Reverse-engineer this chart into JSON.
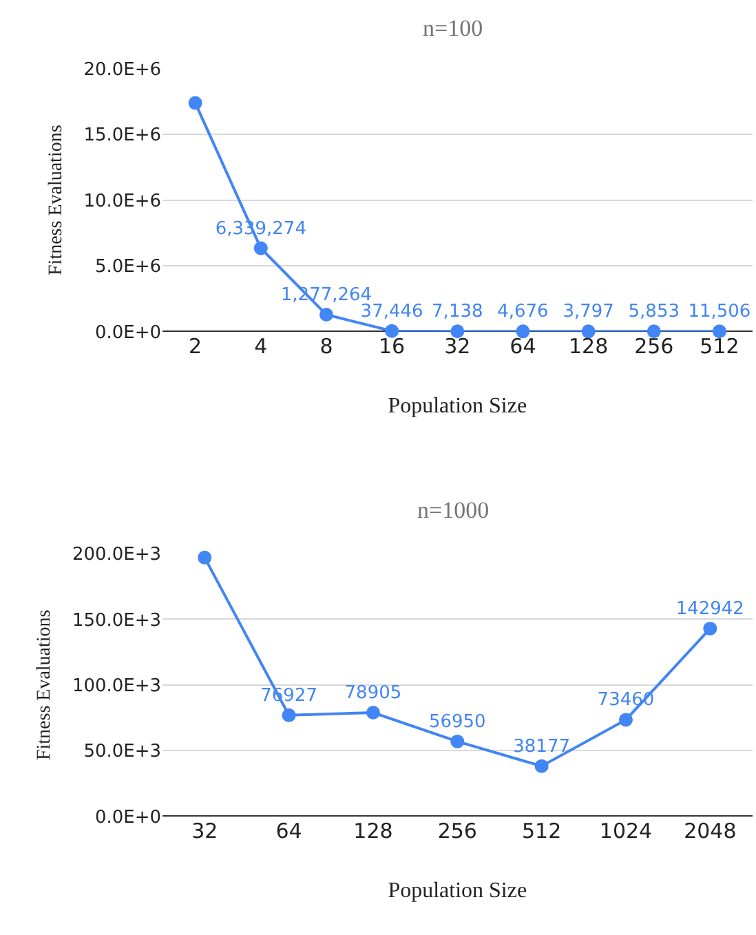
{
  "chart_data": [
    {
      "type": "line",
      "title": "n=100",
      "xlabel": "Population Size",
      "ylabel": "Fitness Evaluations",
      "categories": [
        "2",
        "4",
        "8",
        "16",
        "32",
        "64",
        "128",
        "256",
        "512"
      ],
      "series": [
        {
          "color": "#4285f4",
          "values": [
            17400000,
            6339274,
            1277264,
            37446,
            7138,
            4676,
            3797,
            5853,
            11506
          ],
          "value_labels": [
            null,
            "6,339,274",
            "1,277,264",
            "37,446",
            "7,138",
            "4,676",
            "3,797",
            "5,853",
            "11,506"
          ]
        }
      ],
      "ylim": [
        0,
        20000000
      ],
      "yticks": [
        {
          "value": 0,
          "label": "0.0E+0"
        },
        {
          "value": 5000000,
          "label": "5.0E+6"
        },
        {
          "value": 10000000,
          "label": "10.0E+6"
        },
        {
          "value": 15000000,
          "label": "15.0E+6"
        },
        {
          "value": 20000000,
          "label": "20.0E+6"
        }
      ],
      "grid": "y",
      "marker": "circle"
    },
    {
      "type": "line",
      "title": "n=1000",
      "xlabel": "Population Size",
      "ylabel": "Fitness Evaluations",
      "categories": [
        "32",
        "64",
        "128",
        "256",
        "512",
        "1024",
        "2048"
      ],
      "series": [
        {
          "color": "#4285f4",
          "values": [
            197000,
            76927,
            78905,
            56950,
            38177,
            73460,
            142942
          ],
          "value_labels": [
            null,
            "76927",
            "78905",
            "56950",
            "38177",
            "73460",
            "142942"
          ]
        }
      ],
      "ylim": [
        0,
        200000
      ],
      "yticks": [
        {
          "value": 0,
          "label": "0.0E+0"
        },
        {
          "value": 50000,
          "label": "50.0E+3"
        },
        {
          "value": 100000,
          "label": "100.0E+3"
        },
        {
          "value": 150000,
          "label": "150.0E+3"
        },
        {
          "value": 200000,
          "label": "200.0E+3"
        }
      ],
      "grid": "y",
      "marker": "circle"
    }
  ]
}
